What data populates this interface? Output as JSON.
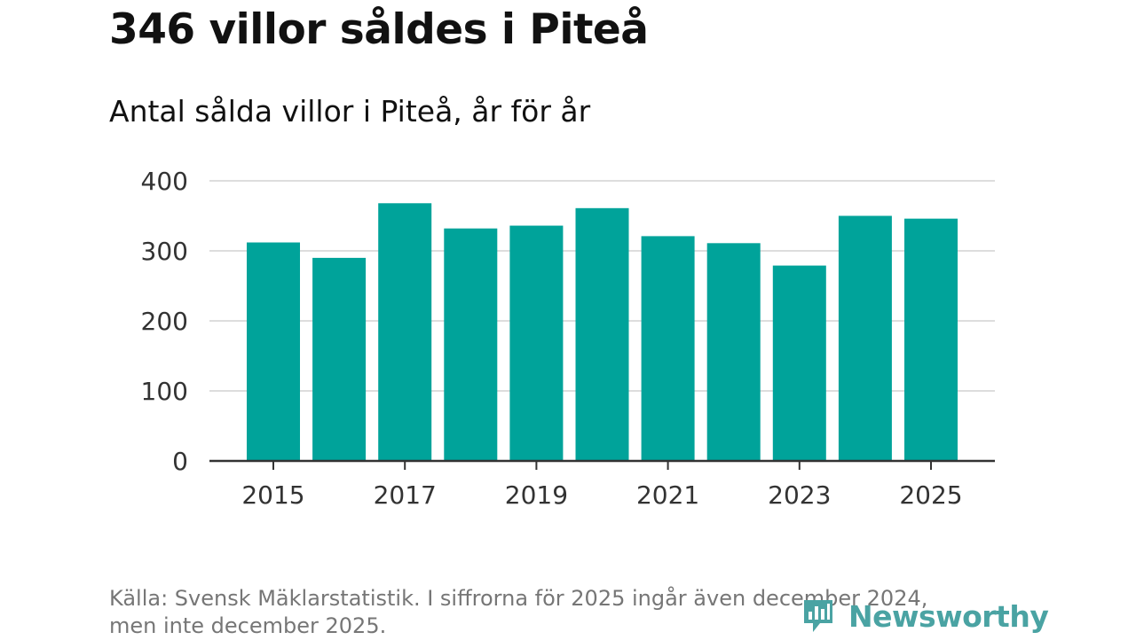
{
  "header": {
    "title": "346 villor såldes i Piteå",
    "subtitle": "Antal sålda villor i Piteå, år för år"
  },
  "footer": {
    "source_line1": "Källa: Svensk Mäklarstatistik. I siffrorna för 2025 ingår även december 2024,",
    "source_line2": "men inte december 2025.",
    "brand": "Newsworthy",
    "brand_icon": "newsworthy-logo-icon"
  },
  "colors": {
    "bar": "#00a39a",
    "grid": "#dddddd",
    "axis": "#333333",
    "brand": "#4aa3a3"
  },
  "chart_data": {
    "type": "bar",
    "title": "346 villor såldes i Piteå",
    "subtitle": "Antal sålda villor i Piteå, år för år",
    "xlabel": "",
    "ylabel": "",
    "categories": [
      "2015",
      "2016",
      "2017",
      "2018",
      "2019",
      "2020",
      "2021",
      "2022",
      "2023",
      "2024",
      "2025"
    ],
    "values": [
      312,
      290,
      368,
      332,
      336,
      361,
      321,
      311,
      279,
      350,
      346
    ],
    "x_tick_labels": [
      "2015",
      "2017",
      "2019",
      "2021",
      "2023",
      "2025"
    ],
    "y_ticks": [
      "0",
      "100",
      "200",
      "300",
      "400"
    ],
    "ylim": [
      0,
      400
    ],
    "grid": true,
    "legend": "none"
  }
}
